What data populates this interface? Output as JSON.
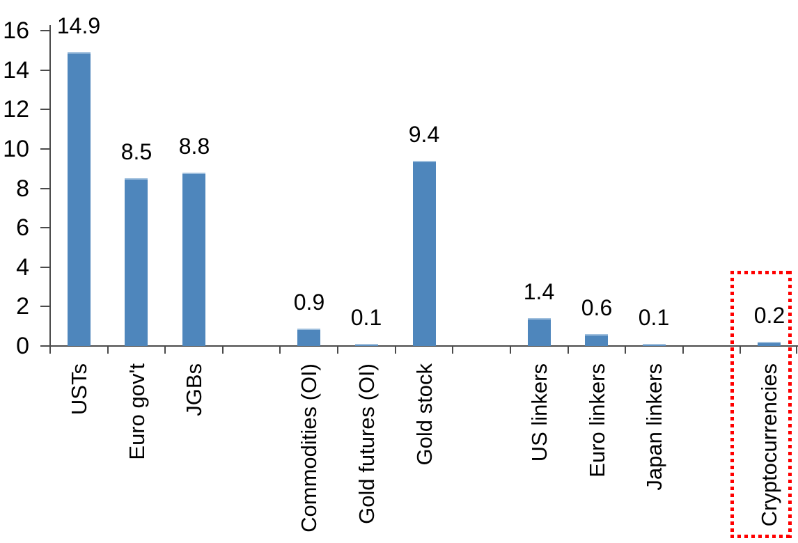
{
  "chart_data": {
    "type": "bar",
    "title": "",
    "xlabel": "",
    "ylabel": "",
    "categories": [
      "USTs",
      "Euro gov't",
      "JGBs",
      "",
      "Commodities (OI)",
      "Gold futures (OI)",
      "Gold stock",
      "",
      "US linkers",
      "Euro linkers",
      "Japan linkers",
      "",
      "Cryptocurrencies"
    ],
    "values": [
      14.9,
      8.5,
      8.8,
      null,
      0.9,
      0.1,
      9.4,
      null,
      1.4,
      0.6,
      0.1,
      null,
      0.2
    ],
    "data_labels": [
      "14.9",
      "8.5",
      "8.8",
      "",
      "0.9",
      "0.1",
      "9.4",
      "",
      "1.4",
      "0.6",
      "0.1",
      "",
      "0.2"
    ],
    "yticks": [
      0,
      2,
      4,
      6,
      8,
      10,
      12,
      14,
      16
    ],
    "ylim": [
      0,
      16
    ],
    "grid": false,
    "legend": "none",
    "bar_color": "#4e86bc",
    "bar_top_edge_color": "#9fbfdd",
    "axis_color": "#4a4a4a",
    "text_color": "#000000",
    "highlight": {
      "target_category": "Cryptocurrencies",
      "shape": "dotted-rectangle",
      "color": "#ff0000"
    }
  }
}
